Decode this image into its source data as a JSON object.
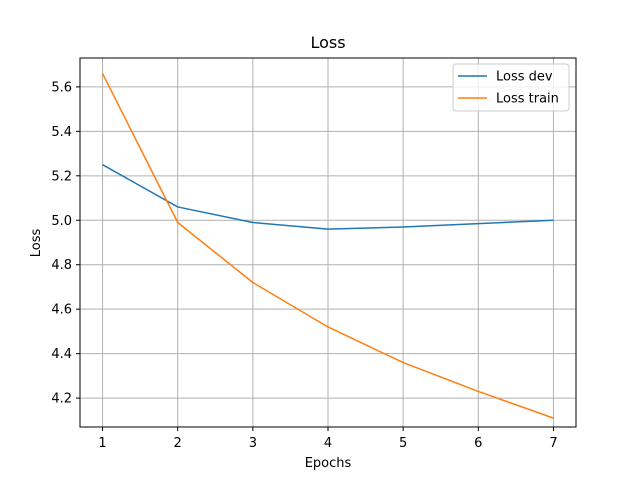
{
  "chart_data": {
    "type": "line",
    "title": "Loss",
    "xlabel": "Epochs",
    "ylabel": "Loss",
    "x": [
      1,
      2,
      3,
      4,
      5,
      6,
      7
    ],
    "xticks": [
      "1",
      "2",
      "3",
      "4",
      "5",
      "6",
      "7"
    ],
    "yticks": [
      "4.2",
      "4.4",
      "4.6",
      "4.8",
      "5.0",
      "5.2",
      "5.4",
      "5.6"
    ],
    "xlim": [
      0.7,
      7.3
    ],
    "ylim": [
      4.07,
      5.73
    ],
    "grid": true,
    "legend_position": "upper right",
    "series": [
      {
        "name": "Loss dev",
        "color": "#1f77b4",
        "values": [
          5.25,
          5.06,
          4.99,
          4.96,
          4.97,
          4.985,
          5.0
        ]
      },
      {
        "name": "Loss train",
        "color": "#ff7f0e",
        "values": [
          5.66,
          4.99,
          4.72,
          4.52,
          4.36,
          4.23,
          4.11
        ]
      }
    ]
  }
}
